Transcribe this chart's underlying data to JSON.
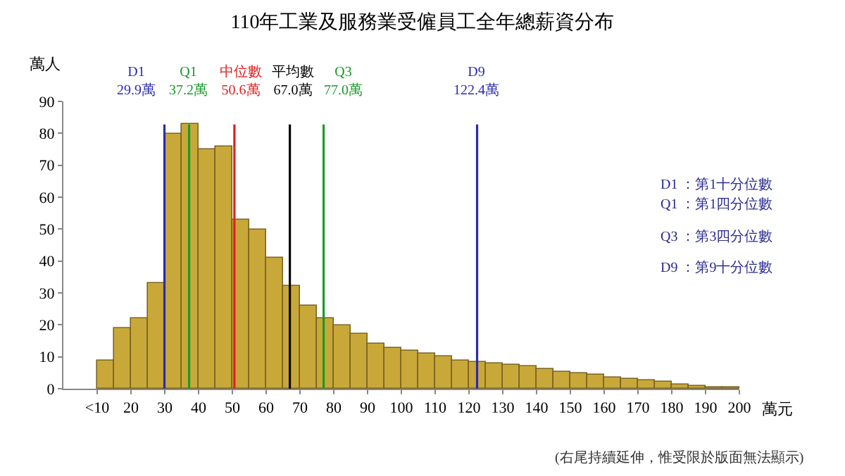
{
  "chart_data": {
    "type": "histogram",
    "title": "110年工業及服務業受僱員工全年總薪資分布",
    "xlabel": "萬元",
    "ylabel": "萬人",
    "bins": [
      10,
      15,
      20,
      25,
      30,
      35,
      40,
      45,
      50,
      55,
      60,
      65,
      70,
      75,
      80,
      85,
      90,
      95,
      100,
      105,
      110,
      115,
      120,
      125,
      130,
      135,
      140,
      145,
      150,
      155,
      160,
      165,
      170,
      175,
      180,
      185,
      190,
      195,
      200
    ],
    "values": [
      9,
      19,
      22,
      33,
      80,
      83,
      75,
      76,
      53,
      50,
      41,
      32,
      26,
      22,
      20,
      17,
      14,
      13,
      12,
      11,
      10,
      9,
      8.5,
      8,
      7.5,
      7,
      6,
      5.5,
      5,
      4.5,
      3.5,
      3,
      2.5,
      2,
      1.5,
      1,
      0.5,
      0.3
    ],
    "color": "#c9a83a",
    "xlim": [
      0,
      200
    ],
    "xticks": [
      {
        "value": 10,
        "label": "<10"
      },
      20,
      30,
      40,
      50,
      60,
      70,
      80,
      90,
      100,
      110,
      120,
      130,
      140,
      150,
      160,
      170,
      180,
      190,
      200
    ],
    "ylim": [
      0,
      90
    ],
    "yticks": [
      0,
      10,
      20,
      30,
      40,
      50,
      60,
      70,
      80,
      90
    ],
    "ref_lines": [
      {
        "axis": "x",
        "value": 29.9,
        "label": "D1\n29.9萬",
        "color": "#2b2bb0"
      },
      {
        "axis": "x",
        "value": 37.2,
        "label": "Q1\n37.2萬",
        "color": "#1a9a2a"
      },
      {
        "axis": "x",
        "value": 50.6,
        "label": "中位數\n50.6萬",
        "color": "#e02020"
      },
      {
        "axis": "x",
        "value": 67.0,
        "label": "平均數\n67.0萬",
        "color": "#000000"
      },
      {
        "axis": "x",
        "value": 77.0,
        "label": "Q3\n77.0萬",
        "color": "#1a9a2a"
      },
      {
        "axis": "x",
        "value": 122.4,
        "label": "D9\n122.4萬",
        "color": "#2b2bb0"
      }
    ],
    "annotations": [
      "D1 ：第1十分位數",
      "Q1 ：第1四分位數",
      "Q3 ：第3四分位數",
      "D9 ：第9十分位數",
      "(右尾持續延伸，惟受限於版面無法顯示)"
    ]
  }
}
